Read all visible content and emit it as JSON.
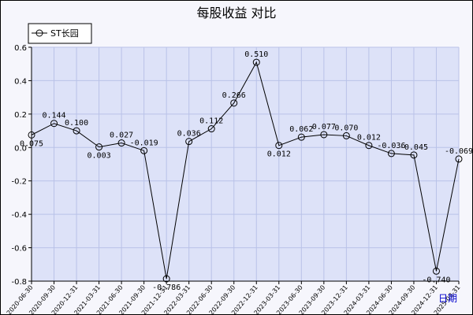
{
  "chart_data": {
    "type": "line",
    "title": "每股收益  对比",
    "legend": {
      "label": "ST长园",
      "placement": "top-left"
    },
    "x_axis_label": "日期",
    "ylim": [
      -0.8,
      0.6
    ],
    "yticks": [
      "0.6",
      "0.4",
      "0.2",
      "0.0",
      "-0.2",
      "-0.4",
      "-0.6",
      "-0.8"
    ],
    "grid": true,
    "colors": {
      "plot_bg": "#dde2f8",
      "grid": "#b9c2e8",
      "line": "#000000",
      "axis_label": "#0000cc"
    },
    "categories": [
      "2020-06-30",
      "2020-09-30",
      "2020-12-31",
      "2021-03-31",
      "2021-06-30",
      "2021-09-30",
      "2021-12-31",
      "2022-03-31",
      "2022-06-30",
      "2022-09-30",
      "2022-12-31",
      "2023-03-31",
      "2023-06-30",
      "2023-09-30",
      "2023-12-31",
      "2024-03-31",
      "2024-06-30",
      "2024-09-30",
      "2024-12-31",
      "2025-03-31"
    ],
    "series": [
      {
        "name": "ST长园",
        "values": [
          0.075,
          0.144,
          0.1,
          0.003,
          0.027,
          -0.019,
          -0.786,
          0.036,
          0.112,
          0.266,
          0.51,
          0.012,
          0.062,
          0.077,
          0.07,
          0.012,
          -0.036,
          -0.045,
          -0.74,
          -0.069
        ],
        "labels": [
          "0.075",
          "0.144",
          "0.100",
          "0.003",
          "0.027",
          "-0.019",
          "-0.786",
          "0.036",
          "0.112",
          "0.266",
          "0.510",
          "0.012",
          "0.062",
          "0.077",
          "0.070",
          "0.012",
          "-0.036",
          "-0.045",
          "-0.740",
          "-0.069"
        ]
      }
    ]
  }
}
